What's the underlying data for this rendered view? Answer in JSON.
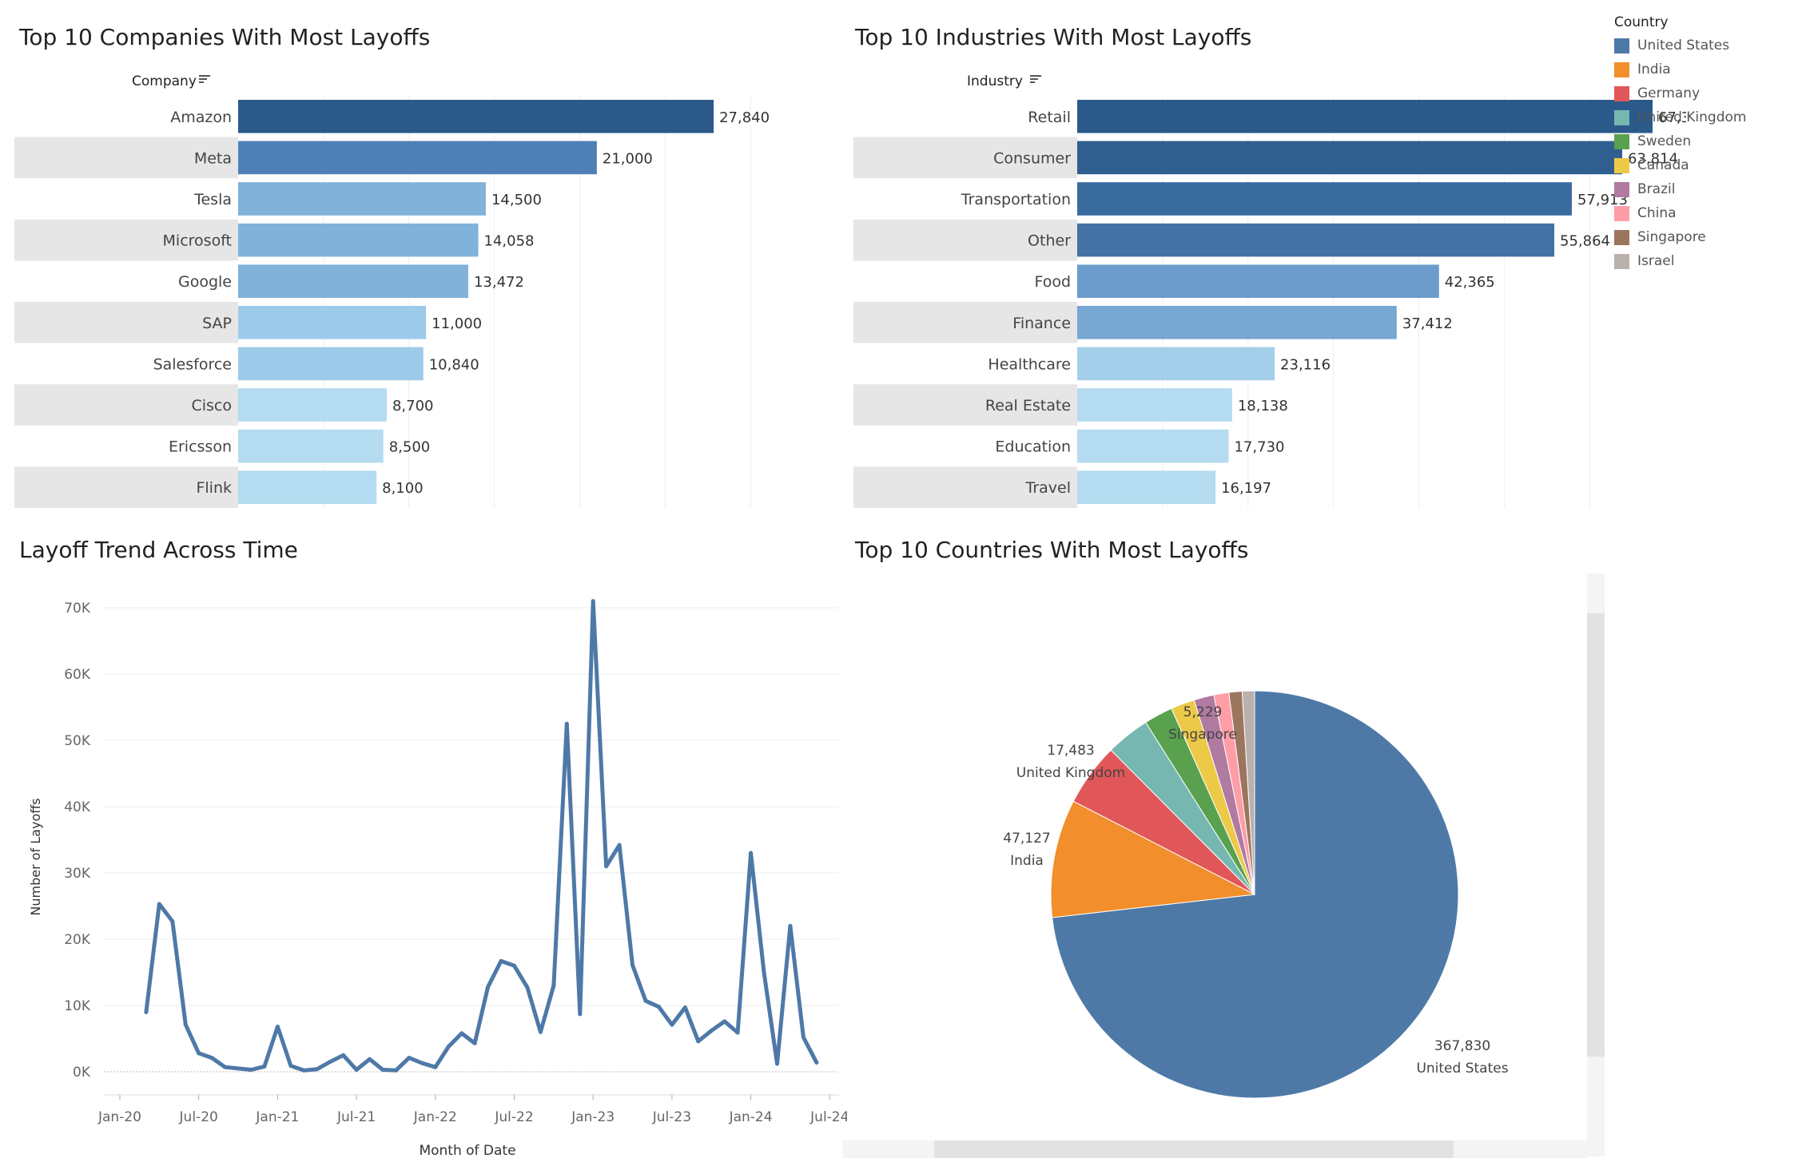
{
  "dashboard": {
    "companies": {
      "title": "Top 10 Companies With Most Layoffs",
      "header": "Company",
      "chart_data": {
        "type": "bar",
        "categories": [
          "Amazon",
          "Meta",
          "Tesla",
          "Microsoft",
          "Google",
          "SAP",
          "Salesforce",
          "Cisco",
          "Ericsson",
          "Flink"
        ],
        "values": [
          27840,
          21000,
          14500,
          14058,
          13472,
          11000,
          10840,
          8700,
          8500,
          8100
        ],
        "value_labels": [
          "27,840",
          "21,000",
          "14,500",
          "14,058",
          "13,472",
          "11,000",
          "10,840",
          "8,700",
          "8,500",
          "8,100"
        ],
        "colors": [
          "#2b5a8a",
          "#4f80b5",
          "#80b2da",
          "#80b2da",
          "#80b2da",
          "#9ecae9",
          "#9ecae9",
          "#b4dbf0",
          "#b4dbf0",
          "#b4dbf0"
        ],
        "xlim": [
          0,
          40000
        ]
      }
    },
    "industries": {
      "title": "Top 10 Industries With Most Layoffs",
      "header": "Industry",
      "chart_data": {
        "type": "bar",
        "categories": [
          "Retail",
          "Consumer",
          "Transportation",
          "Other",
          "Food",
          "Finance",
          "Healthcare",
          "Real Estate",
          "Education",
          "Travel"
        ],
        "values": [
          67368,
          63814,
          57913,
          55864,
          42365,
          37412,
          23116,
          18138,
          17730,
          16197
        ],
        "value_labels": [
          "67,368",
          "63,814",
          "57,913",
          "55,864",
          "42,365",
          "37,412",
          "23,116",
          "18,138",
          "17,730",
          "16,197"
        ],
        "colors": [
          "#2b5a8a",
          "#305f8f",
          "#3a6b9d",
          "#4372a4",
          "#6c9ccb",
          "#77a7d3",
          "#a4cfea",
          "#b4dbf0",
          "#b4dbf0",
          "#b4dbf0"
        ],
        "xlim": [
          0,
          80000
        ]
      }
    },
    "trend": {
      "title": "Layoff Trend Across Time",
      "xlabel": "Month of Date",
      "ylabel": "Number of Layoffs",
      "chart_data": {
        "type": "line",
        "x": [
          "2020-03",
          "2020-04",
          "2020-05",
          "2020-06",
          "2020-07",
          "2020-08",
          "2020-09",
          "2020-10",
          "2020-11",
          "2020-12",
          "2021-01",
          "2021-02",
          "2021-03",
          "2021-04",
          "2021-05",
          "2021-06",
          "2021-07",
          "2021-08",
          "2021-09",
          "2021-10",
          "2021-11",
          "2021-12",
          "2022-01",
          "2022-02",
          "2022-03",
          "2022-04",
          "2022-05",
          "2022-06",
          "2022-07",
          "2022-08",
          "2022-09",
          "2022-10",
          "2022-11",
          "2022-12",
          "2023-01",
          "2023-02",
          "2023-03",
          "2023-04",
          "2023-05",
          "2023-06",
          "2023-07",
          "2023-08",
          "2023-09",
          "2023-10",
          "2023-11",
          "2023-12",
          "2024-01",
          "2024-02",
          "2024-03",
          "2024-04",
          "2024-05",
          "2024-06"
        ],
        "values": [
          9000,
          25300,
          22700,
          7100,
          2800,
          2100,
          700,
          500,
          300,
          800,
          6800,
          900,
          200,
          400,
          1500,
          2500,
          300,
          1900,
          300,
          200,
          2100,
          1300,
          700,
          3800,
          5800,
          4300,
          12800,
          16700,
          16000,
          12700,
          6000,
          13000,
          52500,
          8700,
          71000,
          31000,
          34200,
          16100,
          10700,
          9800,
          7100,
          9700,
          4600,
          6200,
          7600,
          5900,
          33000,
          15000,
          1200,
          22000,
          5200,
          1400
        ],
        "color": "#4e79a7",
        "x_ticks": [
          "Jan-20",
          "Jul-20",
          "Jan-21",
          "Jul-21",
          "Jan-22",
          "Jul-22",
          "Jan-23",
          "Jul-23",
          "Jan-24",
          "Jul-24"
        ],
        "y_ticks": [
          "0K",
          "10K",
          "20K",
          "30K",
          "40K",
          "50K",
          "60K",
          "70K"
        ],
        "ylim": [
          0,
          70000
        ],
        "grid": true
      }
    },
    "countries": {
      "title": "Top 10 Countries With Most Layoffs",
      "chart_data": {
        "type": "pie",
        "labels": [
          "United States",
          "India",
          "Germany",
          "United Kingdom",
          "Sweden",
          "Canada",
          "Brazil",
          "China",
          "Singapore",
          "Israel"
        ],
        "values": [
          367830,
          47127,
          25000,
          17483,
          11500,
          9500,
          8000,
          6000,
          5229,
          4900
        ],
        "colors": [
          "#4e79a7",
          "#f28e2b",
          "#e15759",
          "#76b7b2",
          "#59a14f",
          "#edc948",
          "#b07aa1",
          "#ff9da7",
          "#9c755f",
          "#bab0ac"
        ],
        "labeled_values": [
          "367,830",
          "47,127",
          "17,483",
          "5,229"
        ],
        "labeled_names": [
          "United States",
          "India",
          "United Kingdom",
          "Singapore"
        ]
      }
    },
    "legend": {
      "title": "Country",
      "items": [
        "United States",
        "India",
        "Germany",
        "United Kingdom",
        "Sweden",
        "Canada",
        "Brazil",
        "China",
        "Singapore",
        "Israel"
      ],
      "colors": [
        "#4e79a7",
        "#f28e2b",
        "#e15759",
        "#76b7b2",
        "#59a14f",
        "#edc948",
        "#b07aa1",
        "#ff9da7",
        "#9c755f",
        "#bab0ac"
      ]
    }
  }
}
